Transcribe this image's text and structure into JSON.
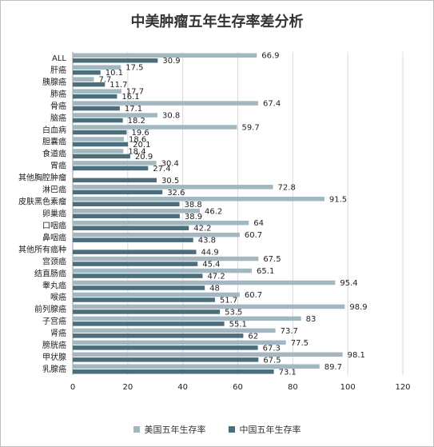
{
  "chart_data": {
    "type": "bar",
    "orientation": "horizontal",
    "title": "中美肿瘤五年生存率差分析",
    "categories": [
      "ALL",
      "肝癌",
      "胰腺癌",
      "肺癌",
      "骨癌",
      "脑癌",
      "白血病",
      "胆囊癌",
      "食道癌",
      "胃癌",
      "其他胸腔肿瘤",
      "淋巴癌",
      "皮肤黑色素瘤",
      "卵巢癌",
      "口咽癌",
      "鼻咽癌",
      "其他所有癌种",
      "宫颈癌",
      "结直肠癌",
      "睾丸癌",
      "喉癌",
      "前列腺癌",
      "子宫癌",
      "肾癌",
      "膀胱癌",
      "甲状腺",
      "乳腺癌"
    ],
    "series": [
      {
        "name": "美国五年生存率",
        "color": "#a3b7c1",
        "values": [
          66.9,
          17.5,
          7.7,
          17.7,
          67.4,
          30.8,
          59.7,
          18.6,
          18.4,
          30.4,
          null,
          72.8,
          91.5,
          46.2,
          64,
          60.7,
          null,
          67.5,
          65.1,
          95.4,
          60.7,
          98.9,
          83,
          73.7,
          77.5,
          98.1,
          89.7
        ]
      },
      {
        "name": "中国五年生存率",
        "color": "#4a6e7b",
        "values": [
          30.9,
          10.1,
          11.7,
          16.1,
          17.1,
          18.2,
          19.6,
          20.1,
          20.9,
          27.4,
          30.5,
          32.6,
          38.8,
          38.9,
          42.2,
          43.8,
          44.9,
          45.4,
          47.2,
          48,
          51.7,
          53.5,
          55.1,
          62,
          67.3,
          67.5,
          73.1
        ]
      }
    ],
    "xlim": [
      0,
      120
    ],
    "xticks": [
      0,
      20,
      40,
      60,
      80,
      100,
      120
    ],
    "grid": true,
    "legend": "bottom"
  }
}
